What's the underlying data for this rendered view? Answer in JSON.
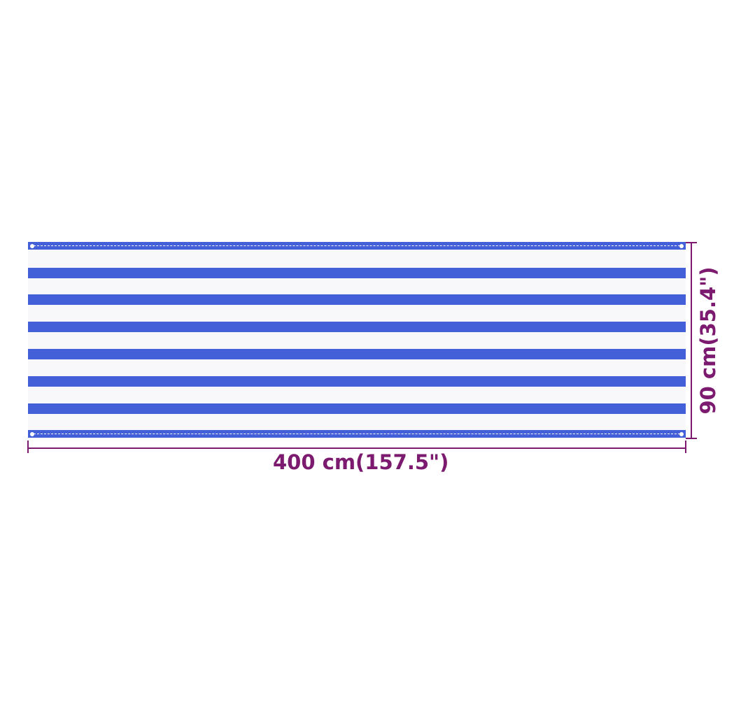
{
  "dimensions": {
    "width_label": "400 cm(157.5\")",
    "height_label": "90 cm(35.4\")"
  },
  "product": {
    "stripe_colors": [
      "#4360d9",
      "#ffffff"
    ],
    "stripe_count": 6
  },
  "colors": {
    "dimension": "#7b1a6f",
    "blue": "#4360d9"
  }
}
